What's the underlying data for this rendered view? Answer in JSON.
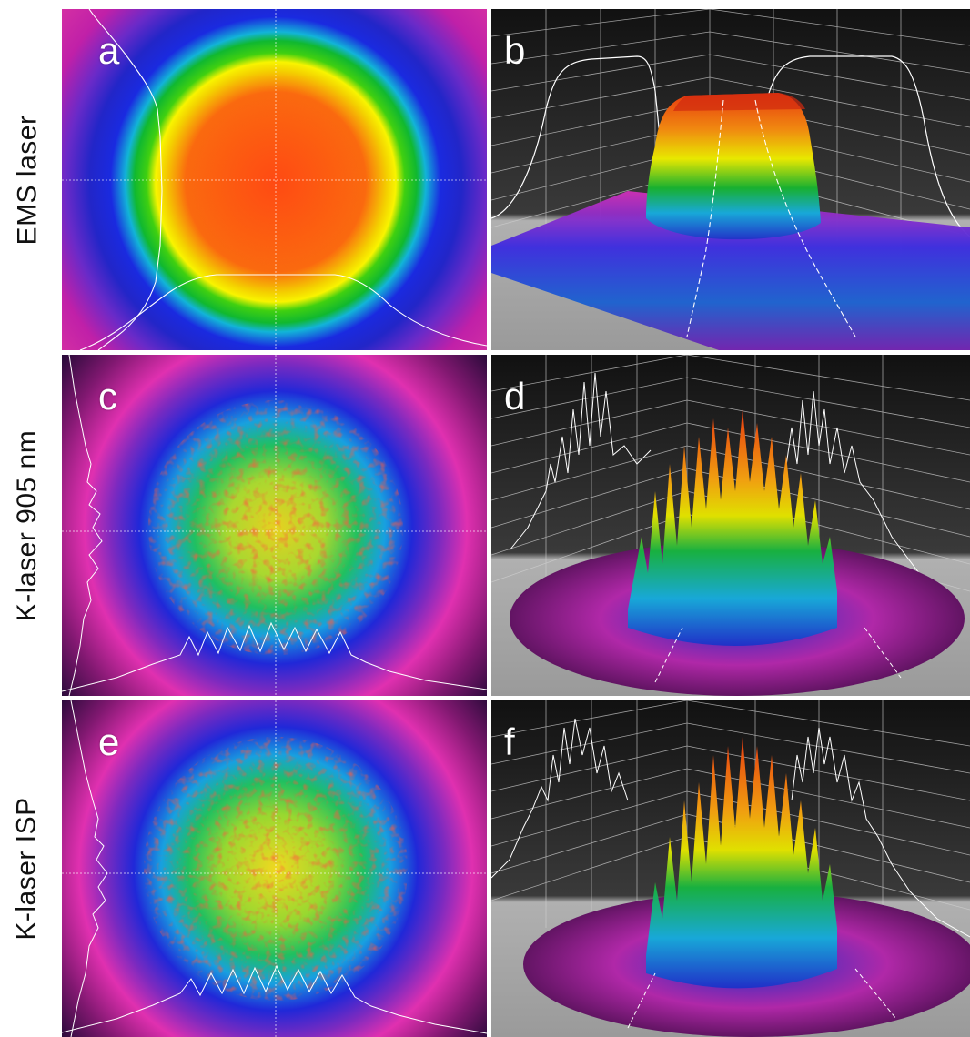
{
  "rows": [
    {
      "label": "EMS laser"
    },
    {
      "label": "K-laser 905 nm"
    },
    {
      "label": "K-laser ISP"
    }
  ],
  "panels": {
    "a": {
      "letter": "a",
      "kind": "2d-beam-profile",
      "profile": "flat-top"
    },
    "b": {
      "letter": "b",
      "kind": "3d-beam-profile",
      "profile": "flat-top"
    },
    "c": {
      "letter": "c",
      "kind": "2d-beam-profile",
      "profile": "speckled"
    },
    "d": {
      "letter": "d",
      "kind": "3d-beam-profile",
      "profile": "speckled"
    },
    "e": {
      "letter": "e",
      "kind": "2d-beam-profile",
      "profile": "speckled"
    },
    "f": {
      "letter": "f",
      "kind": "3d-beam-profile",
      "profile": "speckled"
    }
  },
  "colors": {
    "intensity_scale": [
      "#2a0a3a",
      "#c2208f",
      "#ff1ea8",
      "#1a22e8",
      "#1fa0e8",
      "#10c020",
      "#f0f000",
      "#f07800",
      "#ff3a10"
    ],
    "background_3d_top": "#1a1a1a",
    "background_3d_floor": "#a8a8a8",
    "profile_line": "#ffffff"
  }
}
